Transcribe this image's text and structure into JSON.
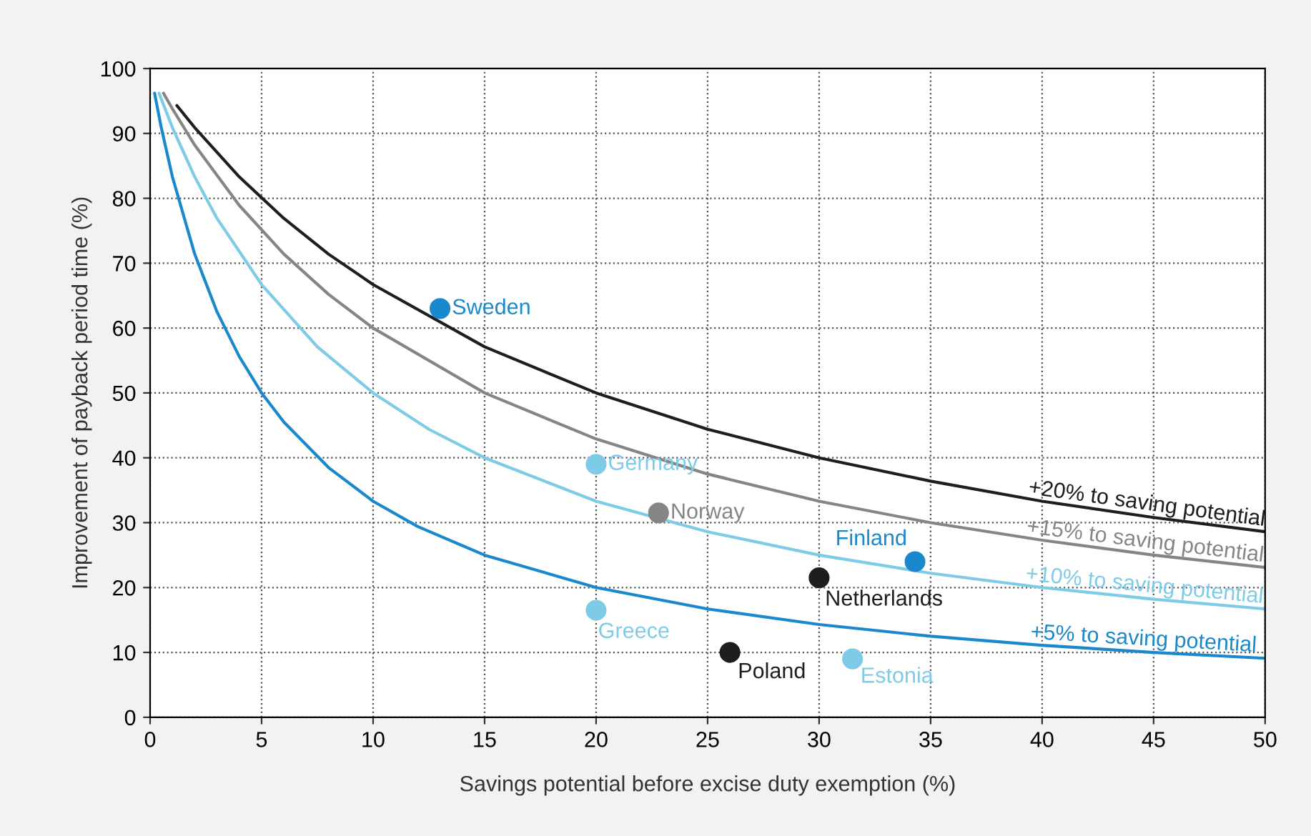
{
  "chart_data": {
    "type": "scatter",
    "xlabel": "Savings potential before excise duty exemption (%)",
    "ylabel": "Improvement of payback period time (%)",
    "xlim": [
      0,
      50
    ],
    "ylim": [
      0,
      100
    ],
    "xticks": [
      0,
      5,
      10,
      15,
      20,
      25,
      30,
      35,
      40,
      45,
      50
    ],
    "yticks": [
      0,
      10,
      20,
      30,
      40,
      50,
      60,
      70,
      80,
      90,
      100
    ],
    "grid": true,
    "legend": false,
    "marker": "circle",
    "series": [
      {
        "name": "+5% to saving potential",
        "type": "line",
        "marker": "none",
        "color": "#1a88cc",
        "x": [
          0.2,
          0.5,
          1,
          2,
          3,
          4,
          5,
          6,
          8,
          10,
          12,
          15,
          20,
          25,
          30,
          35,
          40,
          45,
          50
        ],
        "values": [
          96.2,
          90.9,
          83.3,
          71.4,
          62.5,
          55.6,
          50,
          45.5,
          38.5,
          33.3,
          29.4,
          25,
          20,
          16.7,
          14.3,
          12.5,
          11.1,
          10,
          9.1
        ]
      },
      {
        "name": "+10% to saving potential",
        "type": "line",
        "marker": "none",
        "color": "#7dcbe6",
        "x": [
          0.4,
          1,
          2,
          3,
          5,
          7.5,
          10,
          12.5,
          15,
          20,
          25,
          30,
          35,
          40,
          45,
          50
        ],
        "values": [
          96.2,
          90.9,
          83.3,
          76.9,
          66.7,
          57.1,
          50,
          44.4,
          40,
          33.3,
          28.6,
          25,
          22.2,
          20,
          18.2,
          16.7
        ]
      },
      {
        "name": "+15% to saving potential",
        "type": "line",
        "marker": "none",
        "color": "#858585",
        "x": [
          0.6,
          1,
          2,
          4,
          6,
          8,
          10,
          15,
          20,
          25,
          30,
          35,
          40,
          45,
          50
        ],
        "values": [
          96.2,
          93.8,
          88.2,
          78.9,
          71.4,
          65.2,
          60,
          50,
          42.9,
          37.5,
          33.3,
          30,
          27.3,
          25,
          23.1
        ]
      },
      {
        "name": "+20% to saving potential",
        "type": "line",
        "marker": "none",
        "color": "#1e1e1e",
        "x": [
          1.2,
          2,
          4,
          6,
          8,
          10,
          15,
          20,
          25,
          30,
          35,
          40,
          45,
          50
        ],
        "values": [
          94.3,
          90.9,
          83.3,
          76.9,
          71.4,
          66.7,
          57.1,
          50,
          44.4,
          40,
          36.4,
          33.3,
          30.8,
          28.6
        ]
      },
      {
        "name": "Sweden",
        "color": "#1a88cc",
        "x": [
          13
        ],
        "values": [
          63
        ]
      },
      {
        "name": "Germany",
        "color": "#7dcbe6",
        "x": [
          20
        ],
        "values": [
          39
        ]
      },
      {
        "name": "Norway",
        "color": "#858585",
        "x": [
          22.8
        ],
        "values": [
          31.5
        ]
      },
      {
        "name": "Finland",
        "color": "#1a88cc",
        "x": [
          34.3
        ],
        "values": [
          24
        ]
      },
      {
        "name": "Netherlands",
        "color": "#1e1e1e",
        "x": [
          30
        ],
        "values": [
          21.5
        ]
      },
      {
        "name": "Greece",
        "color": "#7dcbe6",
        "x": [
          20
        ],
        "values": [
          16.5
        ]
      },
      {
        "name": "Poland",
        "color": "#1e1e1e",
        "x": [
          26
        ],
        "values": [
          10
        ]
      },
      {
        "name": "Estonia",
        "color": "#7dcbe6",
        "x": [
          31.5
        ],
        "values": [
          9
        ]
      }
    ]
  }
}
